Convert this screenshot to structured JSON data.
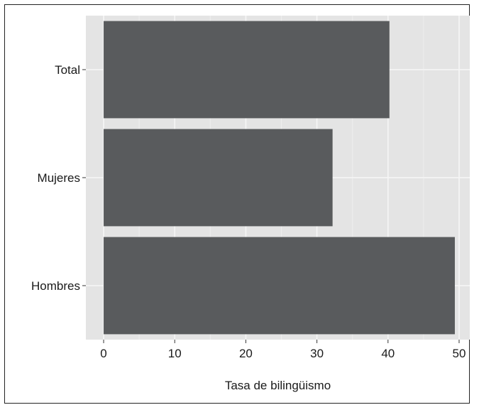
{
  "chart_data": {
    "type": "bar",
    "orientation": "horizontal",
    "categories": [
      "Total",
      "Mujeres",
      "Hombres"
    ],
    "values": [
      40.2,
      32.2,
      49.4
    ],
    "xlabel": "Tasa de bilingüismo",
    "ylabel": "",
    "xlim": [
      -2.5,
      51.5
    ],
    "xticks": [
      0,
      10,
      20,
      30,
      40,
      50
    ],
    "grid": true,
    "colors": {
      "bar": "#595b5d",
      "panel": "#e4e4e4",
      "grid_major": "#f6f6f6",
      "grid_minor": "#eeeeee"
    }
  }
}
